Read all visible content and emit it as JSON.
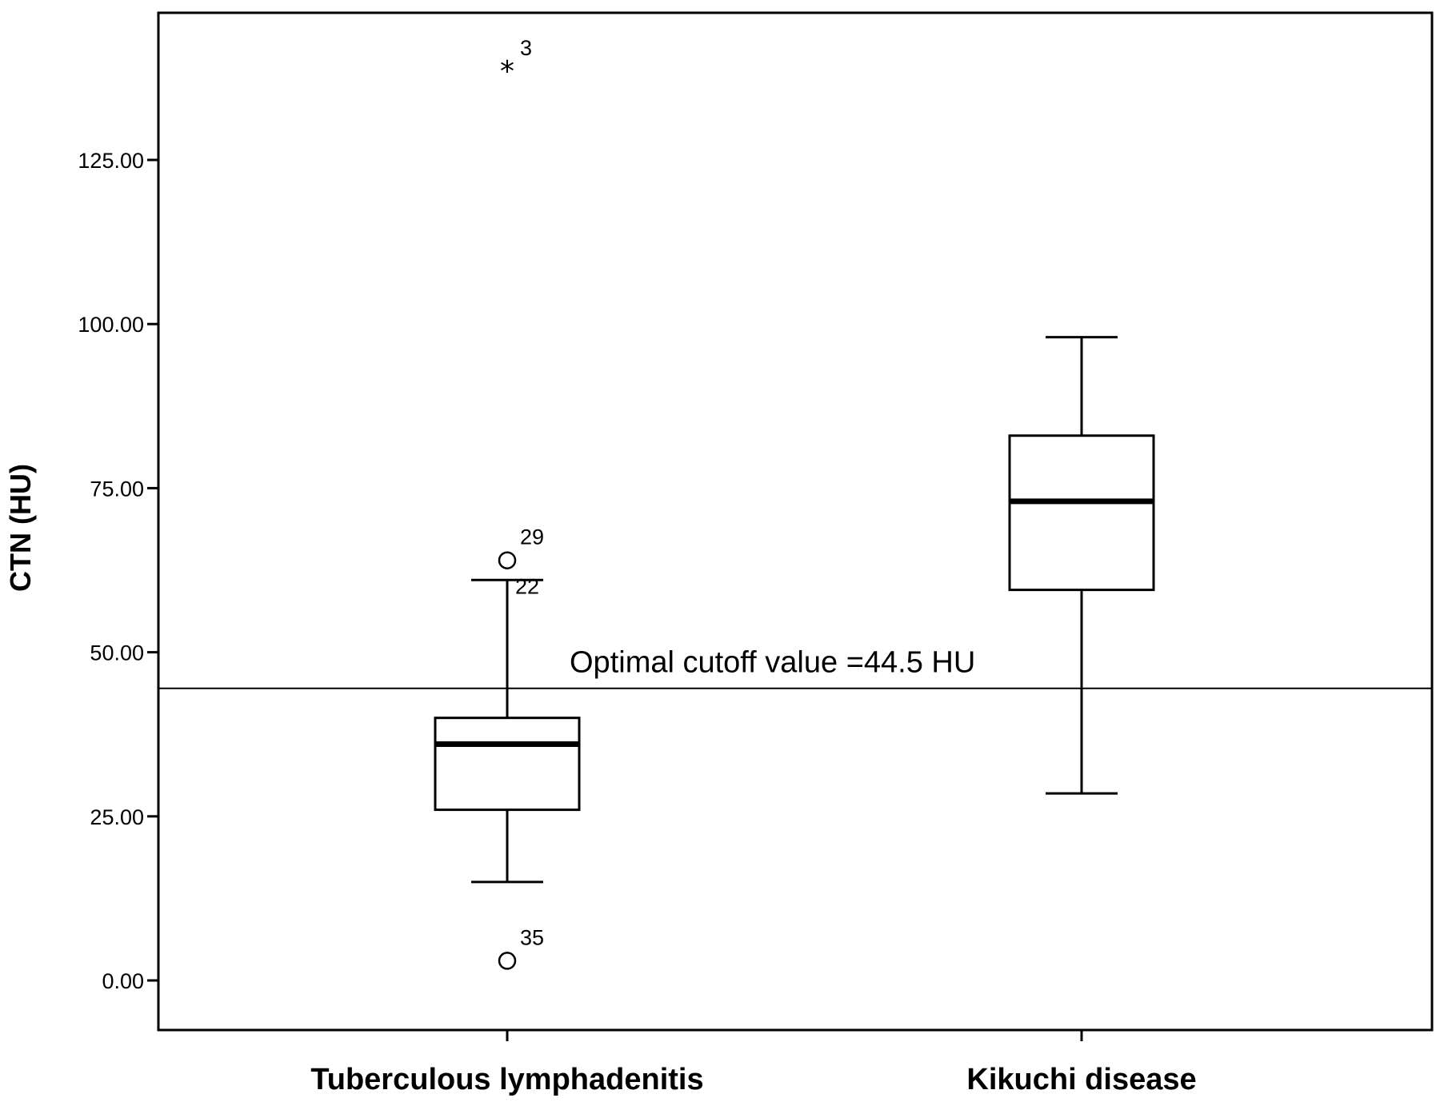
{
  "chart_data": {
    "type": "boxplot",
    "ylabel": "CTN (HU)",
    "xlabel": "",
    "ylim": [
      -7,
      149
    ],
    "yticks": [
      0,
      25,
      50,
      75,
      100,
      125
    ],
    "ytick_labels": [
      "0.00",
      "25.00",
      "50.00",
      "75.00",
      "100.00",
      "125.00"
    ],
    "grid": false,
    "categories": [
      "Tuberculous lymphadenitis",
      "Kikuchi disease"
    ],
    "boxes": [
      {
        "name": "Tuberculous lymphadenitis",
        "whisker_low": 15,
        "q1": 26,
        "median": 36,
        "q3": 40,
        "whisker_high": 61,
        "outliers": [
          {
            "value": 64,
            "label": "29",
            "marker": "circle"
          },
          {
            "value": 61,
            "label": "22",
            "marker": "none"
          },
          {
            "value": 3,
            "label": "35",
            "marker": "circle"
          }
        ],
        "extremes": [
          {
            "value": 139,
            "label": "3",
            "marker": "star"
          }
        ]
      },
      {
        "name": "Kikuchi disease",
        "whisker_low": 28.5,
        "q1": 59.5,
        "median": 73,
        "q3": 83,
        "whisker_high": 98,
        "outliers": [],
        "extremes": []
      }
    ],
    "reference_line": {
      "value": 44.5,
      "label": "Optimal cutoff value =44.5 HU"
    }
  }
}
